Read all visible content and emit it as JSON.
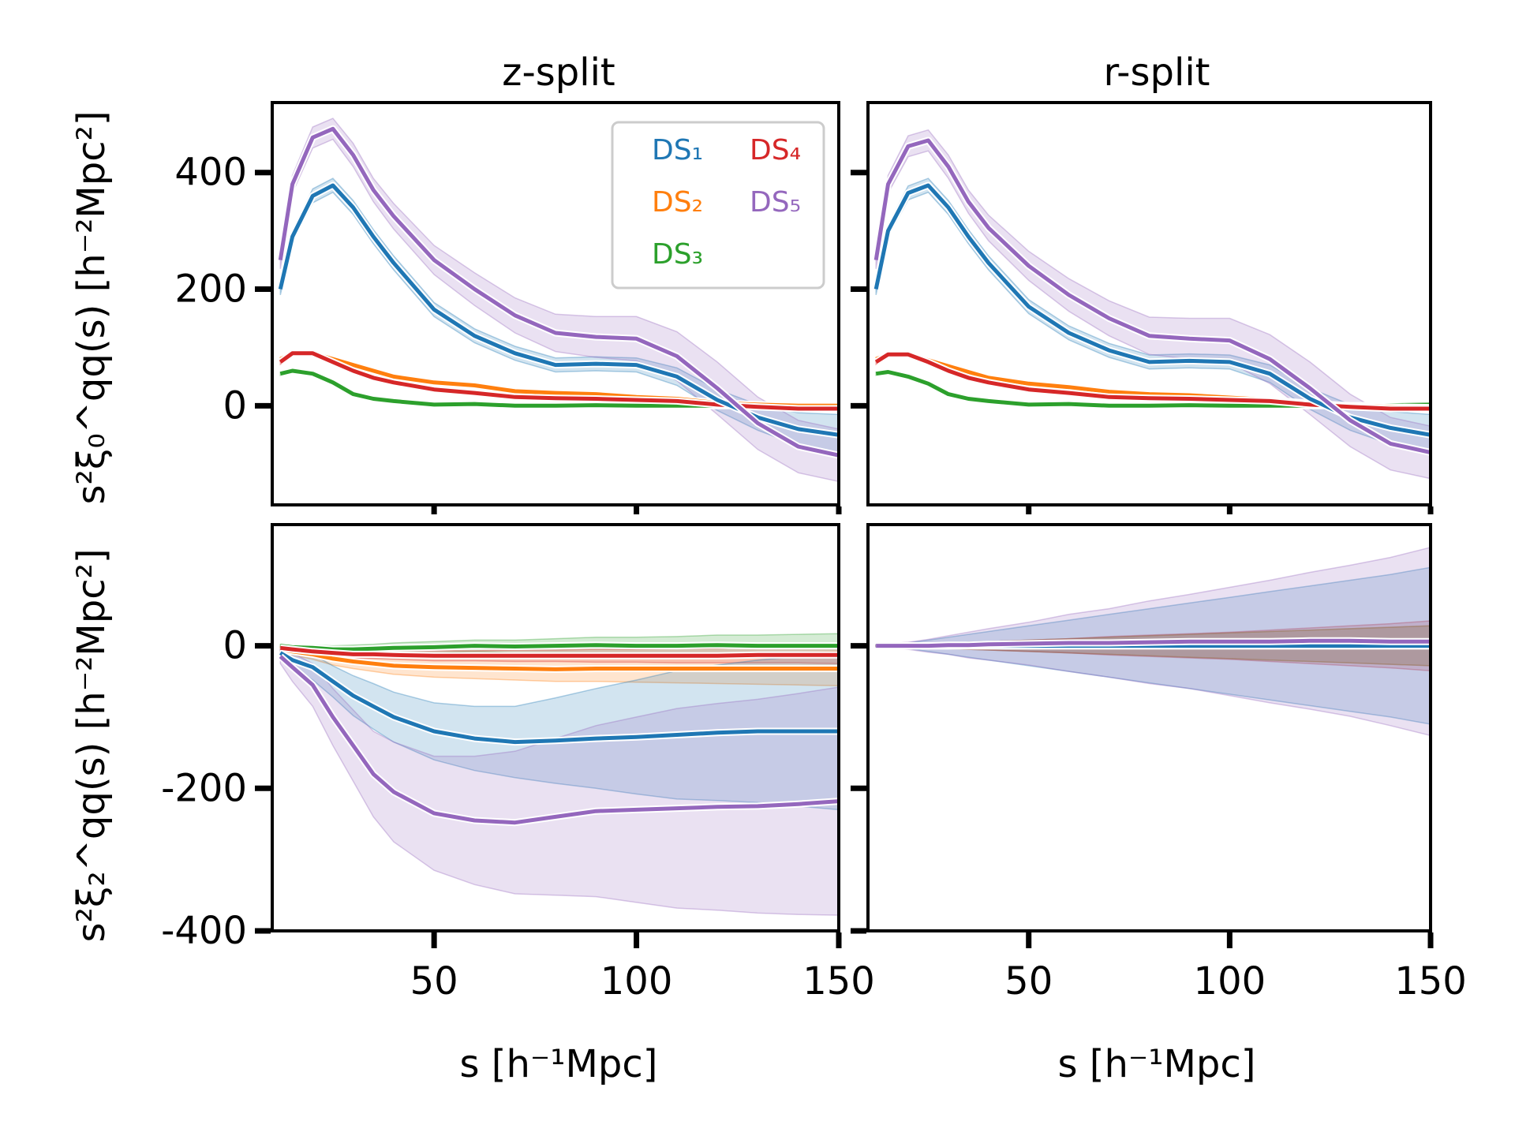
{
  "chart_data": {
    "type": "line",
    "columns": [
      "z-split",
      "r-split"
    ],
    "xlabel": "s [h⁻¹Mpc]",
    "ylabel_top": "s²ξ₀^qq(s) [h⁻²Mpc²]",
    "ylabel_bottom": "s²ξ₂^qq(s) [h⁻²Mpc²]",
    "xlim": [
      10,
      150
    ],
    "xticks": [
      50,
      100,
      150
    ],
    "top_ylim": [
      -170,
      520
    ],
    "top_yticks": [
      0,
      200,
      400
    ],
    "bottom_ylim": [
      -400,
      170
    ],
    "bottom_yticks": [
      -400,
      -200,
      0
    ],
    "legend": {
      "location": "upper-right",
      "entries": [
        "DS₁",
        "DS₂",
        "DS₃",
        "DS₄",
        "DS₅"
      ]
    },
    "colors": {
      "DS1": "#1f77b4",
      "DS2": "#ff7f0e",
      "DS3": "#2ca02c",
      "DS4": "#d62728",
      "DS5": "#9467bd"
    },
    "x": [
      12,
      15,
      20,
      25,
      30,
      35,
      40,
      50,
      60,
      70,
      80,
      90,
      100,
      110,
      120,
      130,
      140,
      150
    ],
    "panels": [
      {
        "column": "z-split",
        "row": "monopole",
        "series": [
          {
            "name": "DS₁",
            "values": [
              200,
              290,
              360,
              378,
              340,
              290,
              245,
              165,
              120,
              90,
              70,
              72,
              70,
              50,
              10,
              -20,
              -40,
              -50
            ],
            "band": [
              10,
              10,
              12,
              12,
              12,
              12,
              12,
              12,
              12,
              12,
              12,
              12,
              12,
              15,
              18,
              22,
              28,
              35
            ]
          },
          {
            "name": "DS₂",
            "values": [
              80,
              90,
              90,
              80,
              70,
              60,
              50,
              40,
              35,
              25,
              22,
              20,
              15,
              12,
              5,
              2,
              0,
              0
            ],
            "band": [
              4,
              4,
              4,
              4,
              4,
              4,
              4,
              4,
              4,
              4,
              4,
              4,
              4,
              4,
              4,
              4,
              4,
              4
            ]
          },
          {
            "name": "DS₃",
            "values": [
              55,
              60,
              55,
              40,
              20,
              12,
              8,
              2,
              3,
              0,
              0,
              1,
              0,
              0,
              0,
              0,
              1,
              2
            ],
            "band": [
              3,
              3,
              3,
              3,
              3,
              3,
              3,
              3,
              3,
              3,
              3,
              3,
              3,
              3,
              3,
              3,
              3,
              3
            ]
          },
          {
            "name": "DS₄",
            "values": [
              75,
              90,
              90,
              75,
              60,
              48,
              40,
              28,
              22,
              15,
              13,
              12,
              10,
              8,
              2,
              -2,
              -5,
              -5
            ],
            "band": [
              4,
              4,
              4,
              4,
              4,
              4,
              4,
              4,
              4,
              4,
              4,
              4,
              4,
              4,
              4,
              4,
              4,
              4
            ]
          },
          {
            "name": "DS₅",
            "values": [
              250,
              380,
              460,
              475,
              430,
              370,
              325,
              250,
              200,
              155,
              125,
              118,
              115,
              85,
              30,
              -30,
              -70,
              -85
            ],
            "band": [
              15,
              15,
              18,
              18,
              20,
              20,
              22,
              25,
              28,
              30,
              32,
              35,
              38,
              42,
              45,
              45,
              45,
              45
            ]
          }
        ]
      },
      {
        "column": "r-split",
        "row": "monopole",
        "series": [
          {
            "name": "DS₁",
            "values": [
              200,
              300,
              365,
              378,
              340,
              290,
              245,
              170,
              125,
              95,
              75,
              77,
              75,
              55,
              12,
              -20,
              -38,
              -50
            ],
            "band": [
              10,
              10,
              12,
              12,
              12,
              12,
              12,
              12,
              12,
              12,
              12,
              12,
              12,
              15,
              18,
              22,
              28,
              35
            ]
          },
          {
            "name": "DS₂",
            "values": [
              80,
              88,
              88,
              78,
              68,
              58,
              48,
              38,
              32,
              24,
              20,
              18,
              14,
              10,
              4,
              0,
              -2,
              -3
            ],
            "band": [
              4,
              4,
              4,
              4,
              4,
              4,
              4,
              4,
              4,
              4,
              4,
              4,
              4,
              4,
              4,
              4,
              4,
              4
            ]
          },
          {
            "name": "DS₃",
            "values": [
              55,
              58,
              50,
              38,
              20,
              12,
              8,
              2,
              3,
              0,
              0,
              1,
              0,
              0,
              0,
              0,
              1,
              2
            ],
            "band": [
              3,
              3,
              3,
              3,
              3,
              3,
              3,
              3,
              3,
              3,
              3,
              3,
              3,
              3,
              3,
              3,
              3,
              3
            ]
          },
          {
            "name": "DS₄",
            "values": [
              75,
              88,
              88,
              75,
              60,
              48,
              40,
              28,
              22,
              15,
              13,
              12,
              10,
              8,
              2,
              -2,
              -5,
              -5
            ],
            "band": [
              4,
              4,
              4,
              4,
              4,
              4,
              4,
              4,
              4,
              4,
              4,
              4,
              4,
              4,
              4,
              4,
              4,
              4
            ]
          },
          {
            "name": "DS₅",
            "values": [
              250,
              380,
              445,
              455,
              410,
              350,
              305,
              240,
              190,
              150,
              120,
              115,
              112,
              80,
              30,
              -25,
              -65,
              -80
            ],
            "band": [
              15,
              15,
              18,
              18,
              20,
              20,
              22,
              25,
              28,
              30,
              32,
              35,
              38,
              42,
              45,
              45,
              45,
              45
            ]
          }
        ]
      },
      {
        "column": "z-split",
        "row": "quadrupole",
        "series": [
          {
            "name": "DS₁",
            "values": [
              -10,
              -20,
              -30,
              -50,
              -70,
              -85,
              -100,
              -120,
              -130,
              -135,
              -133,
              -130,
              -128,
              -125,
              -122,
              -120,
              -120,
              -120
            ],
            "band": [
              5,
              10,
              18,
              22,
              28,
              32,
              35,
              40,
              45,
              50,
              60,
              70,
              80,
              90,
              95,
              100,
              105,
              110
            ]
          },
          {
            "name": "DS₂",
            "values": [
              -5,
              -8,
              -12,
              -18,
              -22,
              -25,
              -28,
              -30,
              -31,
              -32,
              -33,
              -32,
              -32,
              -32,
              -32,
              -32,
              -32,
              -32
            ],
            "band": [
              3,
              5,
              7,
              9,
              10,
              11,
              12,
              14,
              15,
              16,
              17,
              18,
              19,
              20,
              21,
              22,
              23,
              24
            ]
          },
          {
            "name": "DS₃",
            "values": [
              0,
              -2,
              -3,
              -5,
              -5,
              -4,
              -3,
              -2,
              0,
              -1,
              0,
              1,
              0,
              0,
              1,
              0,
              0,
              0
            ],
            "band": [
              2,
              3,
              4,
              5,
              6,
              6,
              7,
              8,
              8,
              9,
              10,
              11,
              12,
              13,
              14,
              15,
              16,
              17
            ]
          },
          {
            "name": "DS₄",
            "values": [
              -3,
              -5,
              -8,
              -10,
              -12,
              -12,
              -13,
              -14,
              -14,
              -14,
              -14,
              -14,
              -14,
              -14,
              -14,
              -13,
              -13,
              -13
            ],
            "band": [
              2,
              3,
              4,
              5,
              5,
              6,
              6,
              7,
              7,
              8,
              8,
              9,
              9,
              10,
              10,
              11,
              11,
              12
            ]
          },
          {
            "name": "DS₅",
            "values": [
              -15,
              -30,
              -55,
              -100,
              -140,
              -180,
              -205,
              -235,
              -245,
              -248,
              -240,
              -232,
              -230,
              -228,
              -226,
              -225,
              -222,
              -218
            ],
            "band": [
              10,
              20,
              30,
              40,
              50,
              60,
              70,
              80,
              90,
              100,
              110,
              120,
              130,
              140,
              145,
              150,
              155,
              160
            ]
          }
        ]
      },
      {
        "column": "r-split",
        "row": "quadrupole",
        "series": [
          {
            "name": "DS₁",
            "values": [
              0,
              0,
              0,
              0,
              0,
              0,
              0,
              0,
              0,
              0,
              0,
              0,
              0,
              0,
              0,
              0,
              0,
              0
            ],
            "band": [
              1,
              2,
              4,
              8,
              12,
              16,
              20,
              28,
              36,
              44,
              52,
              60,
              68,
              76,
              84,
              92,
              100,
              110
            ]
          },
          {
            "name": "DS₂",
            "values": [
              0,
              0,
              0,
              0,
              0,
              0,
              0,
              0,
              0,
              0,
              0,
              0,
              0,
              0,
              0,
              0,
              0,
              0
            ],
            "band": [
              1,
              1,
              2,
              3,
              4,
              5,
              6,
              8,
              10,
              12,
              14,
              16,
              18,
              20,
              22,
              24,
              26,
              28
            ]
          },
          {
            "name": "DS₃",
            "values": [
              0,
              0,
              0,
              0,
              0,
              0,
              0,
              0,
              0,
              0,
              0,
              0,
              0,
              0,
              0,
              0,
              0,
              0
            ],
            "band": [
              1,
              1,
              2,
              3,
              4,
              5,
              6,
              8,
              10,
              12,
              14,
              16,
              18,
              20,
              22,
              24,
              26,
              28
            ]
          },
          {
            "name": "DS₄",
            "values": [
              0,
              0,
              0,
              0,
              0,
              0,
              0,
              0,
              0,
              0,
              0,
              0,
              0,
              0,
              0,
              0,
              0,
              0
            ],
            "band": [
              1,
              1,
              2,
              3,
              4,
              5,
              6,
              8,
              10,
              13,
              15,
              17,
              19,
              22,
              25,
              28,
              31,
              35
            ]
          },
          {
            "name": "DS₅",
            "values": [
              0,
              0,
              0,
              0,
              1,
              1,
              2,
              3,
              4,
              4,
              5,
              6,
              6,
              6,
              7,
              7,
              6,
              6
            ],
            "band": [
              2,
              3,
              5,
              9,
              13,
              18,
              22,
              30,
              40,
              48,
              58,
              66,
              76,
              86,
              96,
              106,
              118,
              132
            ]
          }
        ]
      }
    ]
  }
}
